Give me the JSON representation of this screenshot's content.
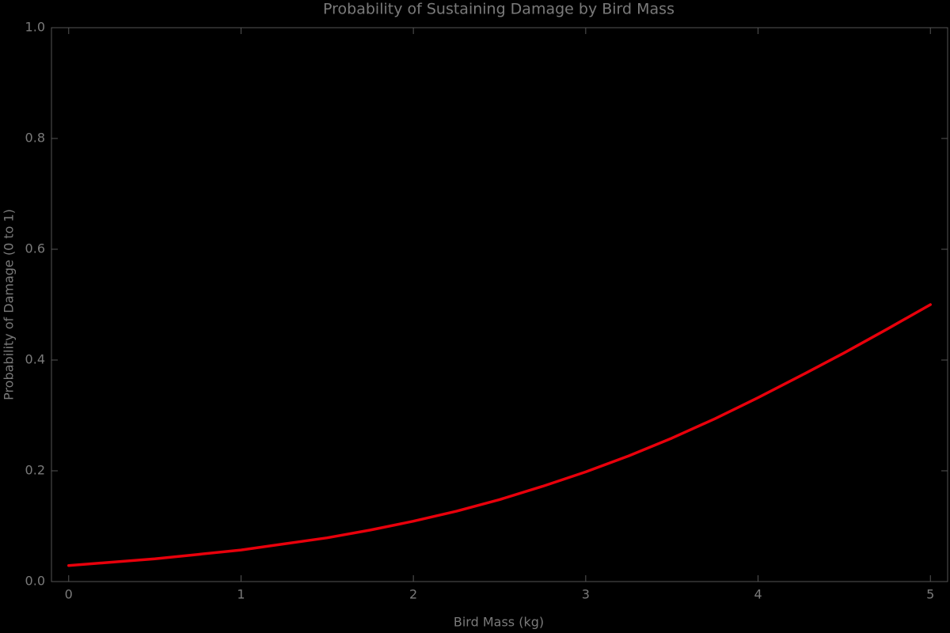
{
  "chart_data": {
    "type": "line",
    "title": "Probability of Sustaining Damage by Bird Mass",
    "x_label": "Bird Mass (kg)",
    "y_label": "Probability of Damage (0 to 1)",
    "x": [
      0,
      0.25,
      0.5,
      0.75,
      1,
      1.25,
      1.5,
      1.75,
      2,
      2.25,
      2.5,
      2.75,
      3,
      3.25,
      3.5,
      3.75,
      4,
      4.25,
      4.5,
      4.75,
      5
    ],
    "series": [
      {
        "color": "#e8000b",
        "values": [
          0.029,
          0.035,
          0.041,
          0.049,
          0.057,
          0.068,
          0.079,
          0.093,
          0.109,
          0.127,
          0.148,
          0.172,
          0.198,
          0.227,
          0.259,
          0.294,
          0.332,
          0.372,
          0.413,
          0.456,
          0.5
        ]
      }
    ],
    "xlim": [
      -0.1,
      5.1
    ],
    "ylim": [
      0,
      1
    ],
    "xticks": [
      0,
      1,
      2,
      3,
      4,
      5
    ],
    "yticks": [
      {
        "value": 0,
        "label": "0.0"
      },
      0.2,
      0.4,
      0.6,
      0.8,
      {
        "value": 1,
        "label": "1.0"
      }
    ],
    "grid": false
  }
}
